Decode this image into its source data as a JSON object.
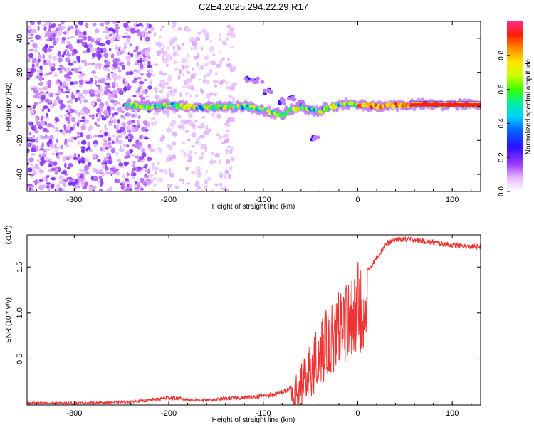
{
  "title": "C2E4.2025.294.22.29.R17",
  "chart_data": [
    {
      "type": "heatmap",
      "xlabel": "Height of straight line (km)",
      "ylabel": "Frequency (Hz)",
      "xlim": [
        -350,
        130
      ],
      "ylim": [
        -50,
        50
      ],
      "x_ticks": [
        -300,
        -200,
        -100,
        0,
        100
      ],
      "y_ticks": [
        -40,
        -20,
        0,
        20,
        40
      ],
      "colorbar": {
        "label": "Normalized spectral amplitude",
        "range": [
          0,
          1
        ],
        "ticks": [
          "0.0",
          "0.2",
          "0.4",
          "0.6",
          "0.8"
        ],
        "colors": [
          "#ffffff",
          "#d3a8f0",
          "#8a2be2",
          "#0000ff",
          "#00c8ff",
          "#00ff64",
          "#b4ff00",
          "#ffff00",
          "#ff8c00",
          "#ff0000",
          "#ff1493"
        ]
      },
      "features": [
        {
          "region": "noise",
          "x_range": [
            -350,
            -220
          ],
          "frequency_range": [
            -50,
            50
          ],
          "amplitude": 0.15
        },
        {
          "region": "carrier",
          "points": [
            [
              -245,
              1
            ],
            [
              -220,
              0
            ],
            [
              -200,
              1
            ],
            [
              -180,
              0
            ],
            [
              -160,
              -0.5
            ],
            [
              -140,
              0
            ],
            [
              -120,
              0
            ],
            [
              -100,
              -2
            ],
            [
              -90,
              -4
            ],
            [
              -80,
              -5
            ],
            [
              -70,
              -2
            ],
            [
              -60,
              0
            ],
            [
              -50,
              -2
            ],
            [
              -40,
              -3
            ],
            [
              -30,
              0
            ],
            [
              -20,
              1
            ],
            [
              0,
              1
            ],
            [
              20,
              0
            ],
            [
              50,
              1
            ],
            [
              80,
              1
            ],
            [
              130,
              1
            ]
          ],
          "amplitude": 0.6
        },
        {
          "region": "sideband",
          "points": [
            [
              -115,
              16
            ],
            [
              -105,
              15
            ],
            [
              -95,
              9
            ],
            [
              -80,
              3
            ],
            [
              -70,
              5
            ],
            [
              -60,
              2
            ],
            [
              -45,
              -18
            ]
          ],
          "amplitude": 0.4
        }
      ]
    },
    {
      "type": "line",
      "xlabel": "Height of straight line (km)",
      "ylabel": "SNR (10 * v/v)",
      "y_exponent": "4",
      "xlim": [
        -350,
        130
      ],
      "ylim": [
        0,
        1.85
      ],
      "x_ticks": [
        -300,
        -200,
        -100,
        0,
        100
      ],
      "y_ticks": [
        "0.5",
        "1.0",
        "1.5"
      ],
      "line_color": "#ee3333",
      "series": [
        {
          "x": [
            -350,
            -300,
            -250,
            -220,
            -200,
            -180,
            -160,
            -140,
            -120,
            -100,
            -85,
            -70,
            -60,
            -50,
            -40,
            -30,
            -20,
            -10,
            0,
            10,
            20,
            30,
            40,
            50,
            60,
            70,
            80,
            90,
            100,
            110,
            120,
            130
          ],
          "values": [
            0.02,
            0.02,
            0.03,
            0.05,
            0.08,
            0.06,
            0.05,
            0.07,
            0.08,
            0.1,
            0.12,
            0.18,
            0.35,
            0.55,
            0.75,
            0.95,
            1.1,
            1.2,
            1.35,
            1.45,
            1.6,
            1.75,
            1.8,
            1.8,
            1.8,
            1.78,
            1.77,
            1.75,
            1.74,
            1.73,
            1.72,
            1.72
          ]
        }
      ]
    }
  ]
}
